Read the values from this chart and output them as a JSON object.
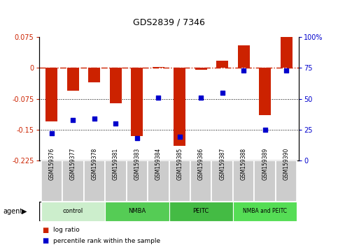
{
  "title": "GDS2839 / 7346",
  "samples": [
    "GSM159376",
    "GSM159377",
    "GSM159378",
    "GSM159381",
    "GSM159383",
    "GSM159384",
    "GSM159385",
    "GSM159386",
    "GSM159387",
    "GSM159388",
    "GSM159389",
    "GSM159390"
  ],
  "log_ratio": [
    -0.13,
    -0.055,
    -0.035,
    -0.085,
    -0.165,
    0.003,
    -0.19,
    -0.005,
    0.018,
    0.055,
    -0.115,
    0.075
  ],
  "percentile_rank": [
    22,
    33,
    34,
    30,
    18,
    51,
    19,
    51,
    55,
    73,
    25,
    73
  ],
  "ylim_left": [
    -0.225,
    0.075
  ],
  "ylim_right": [
    0,
    100
  ],
  "yticks_left": [
    0.075,
    0,
    -0.075,
    -0.15,
    -0.225
  ],
  "yticks_right": [
    100,
    75,
    50,
    25,
    0
  ],
  "bar_color": "#cc2200",
  "dot_color": "#0000cc",
  "groups": [
    {
      "label": "control",
      "start": 0,
      "end": 3,
      "color": "#cceecc"
    },
    {
      "label": "NMBA",
      "start": 3,
      "end": 6,
      "color": "#55cc55"
    },
    {
      "label": "PEITC",
      "start": 6,
      "end": 9,
      "color": "#44bb44"
    },
    {
      "label": "NMBA and PEITC",
      "start": 9,
      "end": 12,
      "color": "#55dd55"
    }
  ],
  "agent_label": "agent",
  "legend_logratio": "log ratio",
  "legend_percentile": "percentile rank within the sample",
  "bar_width": 0.55
}
